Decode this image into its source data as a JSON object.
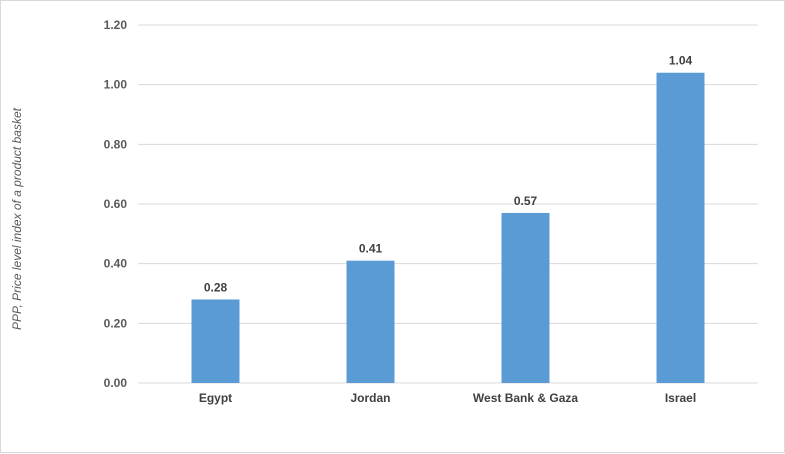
{
  "chart_data": {
    "type": "bar",
    "categories": [
      "Egypt",
      "Jordan",
      "West Bank & Gaza",
      "Israel"
    ],
    "values": [
      0.28,
      0.41,
      0.57,
      1.04
    ],
    "data_labels": [
      "0.28",
      "0.41",
      "0.57",
      "1.04"
    ],
    "title": "",
    "xlabel": "",
    "ylabel": "PPP, Price level index of a product basket",
    "ylim": [
      0,
      1.2
    ],
    "yticks": [
      "0.00",
      "0.20",
      "0.40",
      "0.60",
      "0.80",
      "1.00",
      "1.20"
    ],
    "grid": true,
    "legend": "none",
    "bar_color": "#5b9bd5",
    "grid_color": "#d9d9d9"
  }
}
